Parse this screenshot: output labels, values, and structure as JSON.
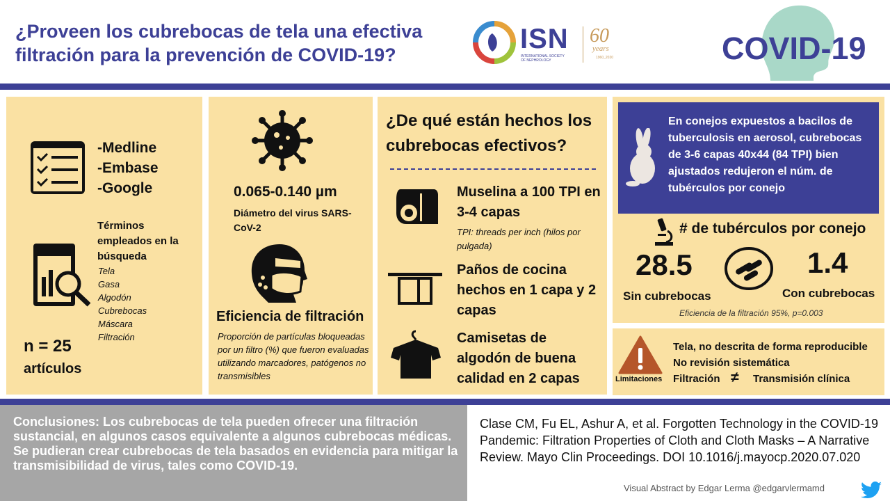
{
  "header": {
    "title": "¿Proveen los cubrebocas de tela una efectiva filtración para la prevención de COVID-19?",
    "isn_logo": {
      "name": "ISN",
      "subtitle": "INTERNATIONAL SOCIETY OF NEPHROLOGY",
      "anniversary": "60",
      "anniversary_word": "years",
      "anniversary_range": "1960_2020"
    },
    "covid_label": "COVID-19"
  },
  "search": {
    "databases": [
      "-Medline",
      "-Embase",
      "-Google"
    ],
    "terms_heading": "Términos empleados en la búsqueda",
    "terms": [
      "Tela",
      "Gasa",
      "Algodón",
      "Cubrebocas",
      "Máscara",
      "Filtración"
    ],
    "n_count": "n = 25",
    "n_unit": "artículos"
  },
  "virus": {
    "size": "0.065-0.140 µm",
    "size_desc": "Diámetro del virus SARS-CoV-2",
    "efficiency_heading": "Eficiencia de filtración",
    "efficiency_desc": "Proporción de partículas bloqueadas por un filtro (%) que fueron evaluadas utilizando marcadores, patógenos no transmisibles"
  },
  "materials": {
    "heading": "¿De qué están hechos los cubrebocas efectivos?",
    "items": [
      {
        "label": "Muselina a 100 TPI en 3-4 capas",
        "icon": "fabric-roll-icon"
      },
      {
        "label": "Paños de cocina hechos en 1 capa y 2 capas",
        "icon": "towel-icon"
      },
      {
        "label": "Camisetas de algodón de buena calidad en 2 capas",
        "icon": "tshirt-icon"
      }
    ],
    "tpi_note": "TPI: threads per inch (hilos por pulgada)"
  },
  "study": {
    "rabbit_text": "En conejos expuestos a bacilos de tuberculosis en aerosol, cubrebocas de 3-6 capas 40x44 (84 TPI) bien ajustados redujeron el núm. de tubérculos por conejo",
    "tubercle_heading": "# de tubérculos por conejo",
    "without_value": "28.5",
    "without_label": "Sin cubrebocas",
    "with_value": "1.4",
    "with_label": "Con cubrebocas",
    "efficiency_note": "Eficiencia de la filtración 95%, p=0.003"
  },
  "limitations": {
    "label": "Limitaciones",
    "items": [
      "Tela, no descrita de forma reproducible",
      "No revisión sistemática"
    ],
    "filtration": "Filtración",
    "not_equal": "≠",
    "clinical": "Transmisión clínica"
  },
  "conclusion": "Conclusiones: Los cubrebocas de tela pueden ofrecer una filtración sustancial, en algunos casos equivalente a algunos cubrebocas médicas. Se pudieran crear cubrebocas de tela basados en evidencia para mitigar la transmisibilidad de virus, tales como COVID-19.",
  "reference": "Clase CM, Fu EL, Ashur A, et al. Forgotten Technology in the COVID-19 Pandemic: Filtration Properties of Cloth and Cloth Masks – A Narrative Review. Mayo Clin Proceedings. DOI 10.1016/j.mayocp.2020.07.020",
  "footer": "Visual Abstract by Edgar Lerma @edgarvlermamd",
  "colors": {
    "navy": "#3d4096",
    "panel": "#fae1a3",
    "grey": "#a6a6a6",
    "teal": "#a9d8c8",
    "warning": "#b5562a",
    "twitter": "#1da1f2"
  }
}
